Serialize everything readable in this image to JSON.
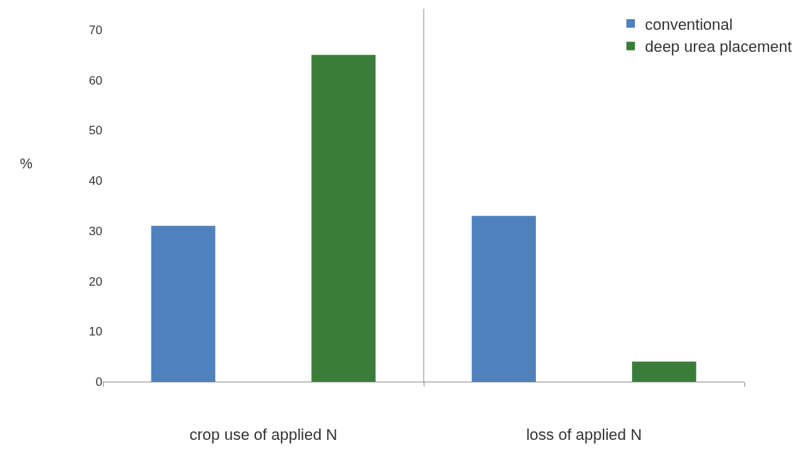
{
  "chart_data": {
    "type": "bar",
    "ylabel": "%",
    "categories": [
      "crop use of applied N",
      "loss of applied N"
    ],
    "series": [
      {
        "name": "conventional",
        "color": "#4f81bd",
        "values": [
          31,
          33
        ]
      },
      {
        "name": "deep urea placement",
        "color": "#3a7d3a",
        "values": [
          65,
          4
        ]
      }
    ],
    "ylim": [
      0,
      70
    ],
    "yticks": [
      0,
      10,
      20,
      30,
      40,
      50,
      60,
      70
    ],
    "legend": "top right"
  }
}
